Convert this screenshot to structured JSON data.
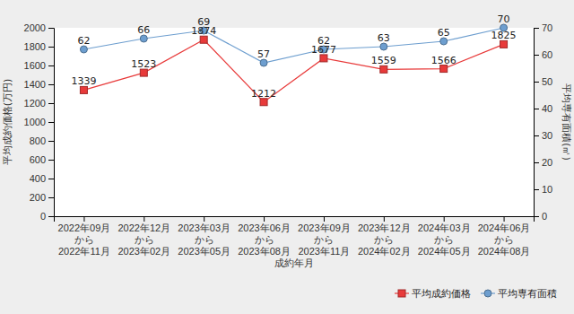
{
  "chart_data": {
    "type": "line",
    "x_label": "成約年月",
    "y_label": "平均成約価格(万円)",
    "y2_label": "平均専有面積(㎡)",
    "categories": [
      "2022年09月\nから\n2022年11月",
      "2022年12月\nから\n2023年02月",
      "2023年03月\nから\n2023年05月",
      "2023年06月\nから\n2023年08月",
      "2023年09月\nから\n2023年11月",
      "2023年12月\nから\n2024年02月",
      "2024年03月\nから\n2024年05月",
      "2024年06月\nから\n2024年08月"
    ],
    "series": [
      {
        "name": "平均成約価格",
        "color": "#e83a3a",
        "marker": "square",
        "values": [
          1339,
          1523,
          1874,
          1212,
          1677,
          1559,
          1566,
          1825
        ]
      },
      {
        "name": "平均専有面積",
        "color": "#6d9ecf",
        "marker": "circle",
        "axis": "y2",
        "values": [
          62,
          66,
          69,
          57,
          62,
          63,
          65,
          70
        ]
      }
    ],
    "ylim": [
      0,
      2000
    ],
    "yticks": [
      0,
      200,
      400,
      600,
      800,
      1000,
      1200,
      1400,
      1600,
      1800,
      2000
    ],
    "y2lim": [
      0,
      70
    ],
    "y2ticks": [
      0,
      10,
      20,
      30,
      40,
      50,
      60,
      70
    ],
    "data_labels": true,
    "grid": false,
    "legend": "bottom-right"
  }
}
